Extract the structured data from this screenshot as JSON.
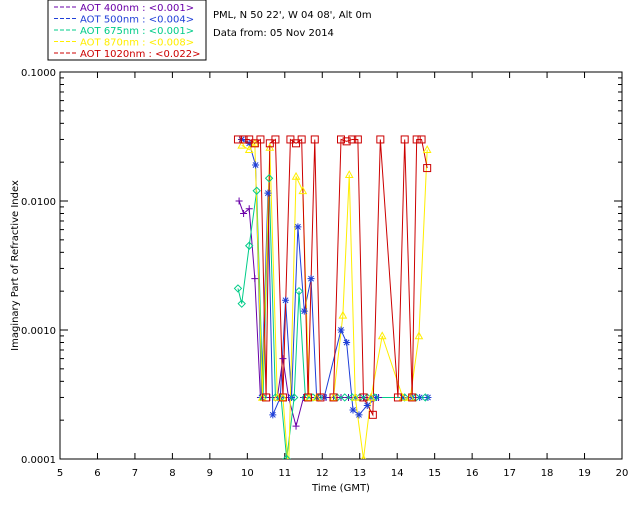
{
  "station": {
    "title": "PML, N 50 22', W 04 08', Alt 0m",
    "subtitle": "Data from: 05 Nov 2014"
  },
  "chart_data": {
    "type": "line",
    "xlabel": "Time (GMT)",
    "ylabel": "Imaginary Part of Refractive Index",
    "xlim": [
      5,
      20
    ],
    "ylim": [
      0.0001,
      0.1
    ],
    "yscale": "log",
    "x_ticks": [
      "5",
      "6",
      "7",
      "8",
      "9",
      "10",
      "11",
      "12",
      "13",
      "14",
      "15",
      "16",
      "17",
      "18",
      "19",
      "20"
    ],
    "y_ticks": [
      {
        "value": 0.0001,
        "label": "0.0001"
      },
      {
        "value": 0.001,
        "label": "0.0010"
      },
      {
        "value": 0.01,
        "label": "0.0100"
      },
      {
        "value": 0.1,
        "label": "0.1000"
      }
    ],
    "legend": [
      {
        "label": "AOT  400nm : <0.001>",
        "color": "#6a00a8"
      },
      {
        "label": "AOT  500nm : <0.004>",
        "color": "#1f3fd8"
      },
      {
        "label": "AOT  675nm : <0.001>",
        "color": "#00cc88"
      },
      {
        "label": "AOT  870nm : <0.008>",
        "color": "#ffee00"
      },
      {
        "label": "AOT 1020nm : <0.022>",
        "color": "#cc0000"
      }
    ],
    "series": [
      {
        "name": "AOT  400nm : <0.001>",
        "color": "#6a00a8",
        "marker": "plus",
        "points": [
          [
            9.78,
            0.01
          ],
          [
            9.9,
            0.008
          ],
          [
            10.05,
            0.0087
          ],
          [
            10.2,
            0.0025
          ],
          [
            10.35,
            0.0003
          ],
          [
            10.6,
            0.0003
          ],
          [
            10.8,
            0.0003
          ],
          [
            10.95,
            0.0006
          ],
          [
            11.1,
            0.0003
          ],
          [
            11.3,
            0.00018
          ],
          [
            11.5,
            0.0003
          ],
          [
            11.7,
            0.0003
          ],
          [
            11.9,
            0.0003
          ],
          [
            12.1,
            0.0003
          ],
          [
            12.3,
            0.0003
          ],
          [
            12.5,
            0.0003
          ],
          [
            12.7,
            0.0003
          ],
          [
            12.9,
            0.0003
          ],
          [
            13.1,
            0.0003
          ],
          [
            13.3,
            0.0003
          ],
          [
            13.5,
            0.0003
          ]
        ]
      },
      {
        "name": "AOT  500nm : <0.004>",
        "color": "#1f3fd8",
        "marker": "asterisk",
        "points": [
          [
            9.85,
            0.03
          ],
          [
            10.05,
            0.028
          ],
          [
            10.22,
            0.019
          ],
          [
            10.38,
            0.0003
          ],
          [
            10.55,
            0.0115
          ],
          [
            10.68,
            0.00022
          ],
          [
            10.88,
            0.0003
          ],
          [
            11.02,
            0.0017
          ],
          [
            11.18,
            0.0003
          ],
          [
            11.35,
            0.0063
          ],
          [
            11.52,
            0.0014
          ],
          [
            11.7,
            0.0025
          ],
          [
            11.85,
            0.0003
          ],
          [
            12.05,
            0.0003
          ],
          [
            12.5,
            0.001
          ],
          [
            12.65,
            0.0008
          ],
          [
            12.82,
            0.00024
          ],
          [
            12.98,
            0.00022
          ],
          [
            13.2,
            0.00026
          ],
          [
            13.45,
            0.0003
          ],
          [
            14.15,
            0.0003
          ],
          [
            14.4,
            0.0003
          ],
          [
            14.6,
            0.0003
          ],
          [
            14.82,
            0.0003
          ]
        ]
      },
      {
        "name": "AOT  675nm : <0.001>",
        "color": "#00cc88",
        "marker": "diamond",
        "points": [
          [
            9.75,
            0.0021
          ],
          [
            9.85,
            0.0016
          ],
          [
            10.05,
            0.0045
          ],
          [
            10.25,
            0.012
          ],
          [
            10.42,
            0.0003
          ],
          [
            10.58,
            0.015
          ],
          [
            10.75,
            0.0003
          ],
          [
            10.9,
            0.0003
          ],
          [
            11.05,
            0.0001
          ],
          [
            11.25,
            0.0003
          ],
          [
            11.38,
            0.002
          ],
          [
            11.55,
            0.0003
          ],
          [
            11.75,
            0.0003
          ],
          [
            11.9,
            0.0003
          ],
          [
            12.4,
            0.0003
          ],
          [
            12.6,
            0.0003
          ],
          [
            12.8,
            0.0003
          ],
          [
            13.0,
            0.0003
          ],
          [
            13.2,
            0.0003
          ],
          [
            13.4,
            0.0003
          ],
          [
            14.2,
            0.0003
          ],
          [
            14.5,
            0.0003
          ],
          [
            14.75,
            0.0003
          ]
        ]
      },
      {
        "name": "AOT  870nm : <0.008>",
        "color": "#ffee00",
        "marker": "triangle",
        "points": [
          [
            9.85,
            0.027
          ],
          [
            10.05,
            0.025
          ],
          [
            10.2,
            0.028
          ],
          [
            10.4,
            0.0003
          ],
          [
            10.6,
            0.026
          ],
          [
            10.8,
            0.0003
          ],
          [
            10.95,
            0.0003
          ],
          [
            11.1,
            8e-05
          ],
          [
            11.3,
            0.0155
          ],
          [
            11.48,
            0.012
          ],
          [
            11.65,
            0.0003
          ],
          [
            11.85,
            0.0003
          ],
          [
            12.3,
            0.0003
          ],
          [
            12.55,
            0.0013
          ],
          [
            12.72,
            0.016
          ],
          [
            12.88,
            0.0003
          ],
          [
            13.1,
            0.0001
          ],
          [
            13.3,
            0.0003
          ],
          [
            13.6,
            0.0009
          ],
          [
            14.15,
            0.0003
          ],
          [
            14.35,
            0.0003
          ],
          [
            14.58,
            0.0009
          ],
          [
            14.8,
            0.025
          ]
        ]
      },
      {
        "name": "AOT 1020nm : <0.022>",
        "color": "#cc0000",
        "marker": "square",
        "points": [
          [
            9.75,
            0.03
          ],
          [
            9.9,
            0.03
          ],
          [
            10.05,
            0.03
          ],
          [
            10.2,
            0.028
          ],
          [
            10.35,
            0.03
          ],
          [
            10.5,
            0.0003
          ],
          [
            10.6,
            0.028
          ],
          [
            10.75,
            0.03
          ],
          [
            10.95,
            0.0003
          ],
          [
            11.15,
            0.03
          ],
          [
            11.3,
            0.028
          ],
          [
            11.45,
            0.03
          ],
          [
            11.62,
            0.0003
          ],
          [
            11.8,
            0.03
          ],
          [
            11.95,
            0.0003
          ],
          [
            12.3,
            0.0003
          ],
          [
            12.5,
            0.03
          ],
          [
            12.65,
            0.029
          ],
          [
            12.8,
            0.03
          ],
          [
            12.95,
            0.03
          ],
          [
            13.1,
            0.0003
          ],
          [
            13.35,
            0.00022
          ],
          [
            13.55,
            0.03
          ],
          [
            14.02,
            0.0003
          ],
          [
            14.2,
            0.03
          ],
          [
            14.4,
            0.0003
          ],
          [
            14.52,
            0.03
          ],
          [
            14.65,
            0.03
          ],
          [
            14.8,
            0.018
          ]
        ]
      }
    ]
  }
}
